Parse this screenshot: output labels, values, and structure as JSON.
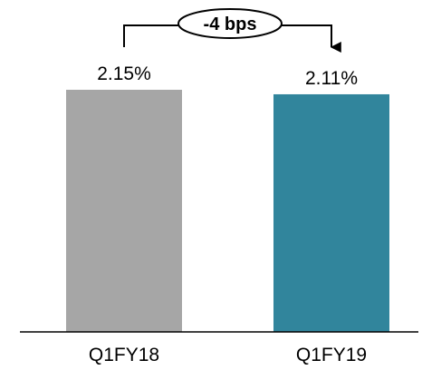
{
  "chart_data": {
    "type": "bar",
    "title": "",
    "xlabel": "",
    "ylabel": "",
    "categories": [
      "Q1FY18",
      "Q1FY19"
    ],
    "values": [
      2.15,
      2.11
    ],
    "value_labels": [
      "2.15%",
      "2.11%"
    ],
    "unit": "%",
    "ylim": [
      0,
      2.15
    ],
    "grid": false,
    "legend": "none",
    "colors": [
      "#a6a6a6",
      "#31859c"
    ],
    "annotation": {
      "text": "-4 bps",
      "from_category": "Q1FY18",
      "to_category": "Q1FY19",
      "arrow_direction": "down"
    }
  }
}
